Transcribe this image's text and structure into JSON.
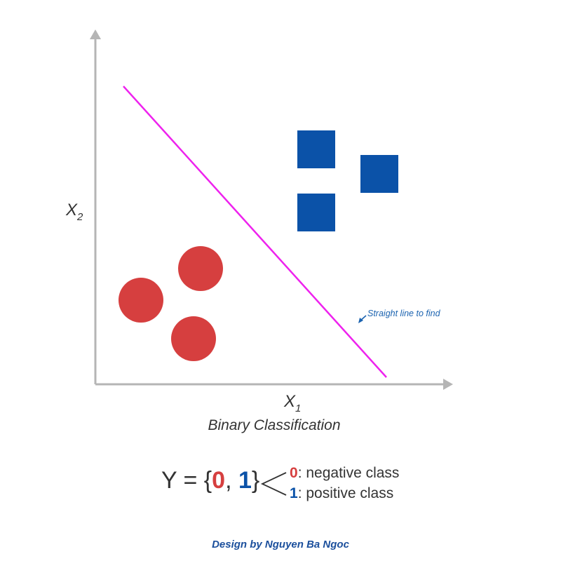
{
  "colors": {
    "negative": "#d63f3f",
    "positive": "#0b52a8",
    "line": "#ee22ee",
    "axis": "#b5b5b5",
    "text": "#333333",
    "annotation": "#1b63b0"
  },
  "axes": {
    "x_label_main": "X",
    "x_label_sub": "1",
    "y_label_main": "X",
    "y_label_sub": "2"
  },
  "points": {
    "negative_class": [
      {
        "x": 1.3,
        "y": 2.4
      },
      {
        "x": 3.0,
        "y": 3.3
      },
      {
        "x": 2.8,
        "y": 1.3
      }
    ],
    "positive_class": [
      {
        "x": 6.3,
        "y": 6.7
      },
      {
        "x": 8.1,
        "y": 6.0
      },
      {
        "x": 6.3,
        "y": 4.9
      }
    ]
  },
  "decision_line": {
    "start": {
      "x": 0.8,
      "y": 8.5
    },
    "end": {
      "x": 8.3,
      "y": 0.2
    },
    "annotation": "Straight line to find"
  },
  "caption": "Binary Classification",
  "formula": {
    "prefix": "Y = {",
    "zero": "0",
    "comma": ", ",
    "one": "1",
    "suffix": "}",
    "negative_num": "0",
    "negative_text": ": negative class",
    "positive_num": "1",
    "positive_text": ": positive class"
  },
  "credit": "Design by Nguyen Ba Ngoc"
}
